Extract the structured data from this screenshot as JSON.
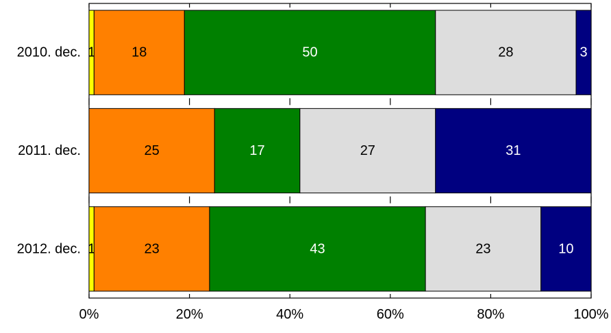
{
  "chart_data": {
    "type": "bar",
    "orientation": "horizontal",
    "stacked": "percent",
    "categories": [
      "2010. dec.",
      "2011. dec.",
      "2012. dec."
    ],
    "series": [
      {
        "values": [
          1,
          0,
          1
        ],
        "color": "#ffff00",
        "label_color": "#000000"
      },
      {
        "values": [
          18,
          25,
          23
        ],
        "color": "#ff8000",
        "label_color": "#000000"
      },
      {
        "values": [
          50,
          17,
          43
        ],
        "color": "#008000",
        "label_color": "#ffffff"
      },
      {
        "values": [
          28,
          27,
          23
        ],
        "color": "#dddddd",
        "label_color": "#000000"
      },
      {
        "values": [
          3,
          31,
          10
        ],
        "color": "#000080",
        "label_color": "#ffffff"
      }
    ],
    "x_ticks": [
      "0%",
      "20%",
      "40%",
      "60%",
      "80%",
      "100%"
    ],
    "xlim": [
      0,
      100
    ],
    "grid": false,
    "legend": "none"
  }
}
